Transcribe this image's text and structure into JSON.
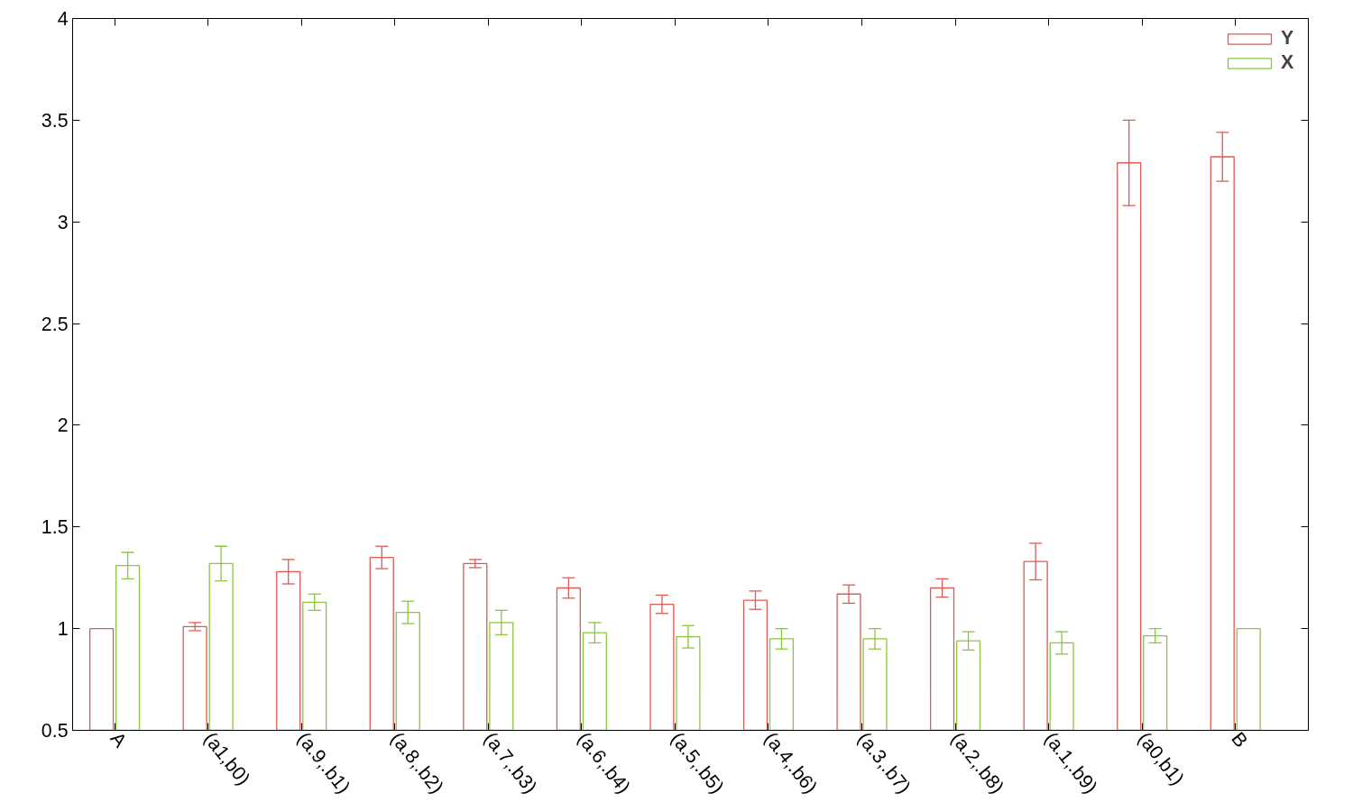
{
  "chart_data": {
    "type": "bar",
    "categories": [
      "A",
      "(a1,b0)",
      "(a.9,.b1)",
      "(a.8,.b2)",
      "(a.7,.b3)",
      "(a.6,.b4)",
      "(a.5,.b5)",
      "(a.4,.b6)",
      "(a.3,.b7)",
      "(a.2,.b8)",
      "(a.1,.b9)",
      "(a0,b1)",
      "B"
    ],
    "series": [
      {
        "name": "Y",
        "color": "#e05a55",
        "values": [
          1.0,
          1.01,
          1.28,
          1.35,
          1.32,
          1.2,
          1.12,
          1.14,
          1.17,
          1.2,
          1.33,
          3.29,
          3.32
        ],
        "errors": [
          null,
          0.02,
          0.06,
          0.055,
          0.02,
          0.05,
          0.045,
          0.045,
          0.045,
          0.045,
          0.09,
          0.21,
          0.12
        ]
      },
      {
        "name": "X",
        "color": "#8cc63f",
        "values": [
          1.31,
          1.32,
          1.13,
          1.08,
          1.03,
          0.98,
          0.96,
          0.95,
          0.95,
          0.94,
          0.93,
          0.965,
          1.0
        ],
        "errors": [
          0.065,
          0.085,
          0.04,
          0.055,
          0.06,
          0.05,
          0.055,
          0.05,
          0.05,
          0.045,
          0.055,
          0.035,
          null
        ]
      }
    ],
    "ylim": [
      0.5,
      4
    ],
    "yticks": [
      0.5,
      1,
      1.5,
      2,
      2.5,
      3,
      3.5,
      4
    ],
    "grid": false,
    "legend": "top right"
  }
}
